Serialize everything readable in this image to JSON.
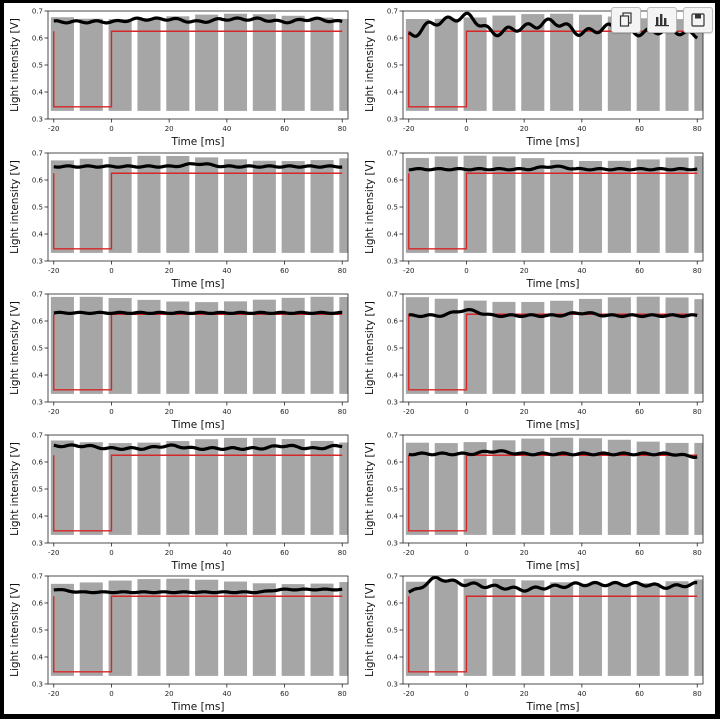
{
  "toolbar": {
    "buttons": [
      {
        "icon": "copy-icon"
      },
      {
        "icon": "bar-chart-icon"
      },
      {
        "icon": "save-icon"
      }
    ]
  },
  "chart_data": [
    {
      "type": "line",
      "xlabel": "Time [ms]",
      "ylabel": "Light intensity [V]",
      "xlim": [
        -22,
        82
      ],
      "ylim": [
        0.3,
        0.7
      ],
      "xticks": [
        -20,
        0,
        20,
        40,
        60,
        80
      ],
      "yticks": [
        0.3,
        0.4,
        0.5,
        0.6,
        0.7
      ],
      "grid": false,
      "gray_band": {
        "y_low": 0.33,
        "y_high": 0.68,
        "gap_period_ms": 10,
        "gap_width_ms": 2
      },
      "series": [
        {
          "color": "#000000",
          "mean": 0.66,
          "amplitude": 0.01,
          "x": [
            -20,
            -10,
            0,
            10,
            20,
            30,
            40,
            50,
            60,
            70,
            80
          ],
          "y": [
            0.66,
            0.66,
            0.66,
            0.67,
            0.67,
            0.66,
            0.67,
            0.67,
            0.66,
            0.67,
            0.66
          ]
        },
        {
          "color": "#d62728",
          "kind": "step",
          "x": [
            -20,
            0,
            0,
            80
          ],
          "low": 0.345,
          "high": 0.625
        }
      ]
    },
    {
      "type": "line",
      "xlabel": "Time [ms]",
      "ylabel": "Light intensity [V]",
      "xlim": [
        -22,
        82
      ],
      "ylim": [
        0.3,
        0.7
      ],
      "xticks": [
        -20,
        0,
        20,
        40,
        60,
        80
      ],
      "yticks": [
        0.3,
        0.4,
        0.5,
        0.6,
        0.7
      ],
      "grid": false,
      "gray_band": {
        "y_low": 0.33,
        "y_high": 0.68,
        "gap_period_ms": 10,
        "gap_width_ms": 2
      },
      "series": [
        {
          "color": "#000000",
          "mean": 0.625,
          "amplitude": 0.03,
          "x": [
            -20,
            -10,
            0,
            10,
            20,
            30,
            40,
            50,
            60,
            70,
            80
          ],
          "y": [
            0.61,
            0.66,
            0.68,
            0.62,
            0.64,
            0.66,
            0.62,
            0.64,
            0.62,
            0.63,
            0.61
          ]
        },
        {
          "color": "#d62728",
          "kind": "step",
          "x": [
            -20,
            0,
            0,
            80
          ],
          "low": 0.345,
          "high": 0.625
        }
      ]
    },
    {
      "type": "line",
      "xlabel": "Time [ms]",
      "ylabel": "Light intensity [V]",
      "xlim": [
        -22,
        82
      ],
      "ylim": [
        0.3,
        0.7
      ],
      "xticks": [
        -20,
        0,
        20,
        40,
        60,
        80
      ],
      "yticks": [
        0.3,
        0.4,
        0.5,
        0.6,
        0.7
      ],
      "grid": false,
      "gray_band": {
        "y_low": 0.33,
        "y_high": 0.68,
        "gap_period_ms": 10,
        "gap_width_ms": 2
      },
      "series": [
        {
          "color": "#000000",
          "mean": 0.65,
          "amplitude": 0.006,
          "x": [
            -20,
            -10,
            0,
            10,
            20,
            30,
            40,
            50,
            60,
            70,
            80
          ],
          "y": [
            0.65,
            0.65,
            0.65,
            0.65,
            0.65,
            0.66,
            0.65,
            0.65,
            0.65,
            0.65,
            0.65
          ]
        },
        {
          "color": "#d62728",
          "kind": "step",
          "x": [
            -20,
            0,
            0,
            80
          ],
          "low": 0.345,
          "high": 0.625
        }
      ]
    },
    {
      "type": "line",
      "xlabel": "Time [ms]",
      "ylabel": "Light intensity [V]",
      "xlim": [
        -22,
        82
      ],
      "ylim": [
        0.3,
        0.7
      ],
      "xticks": [
        -20,
        0,
        20,
        40,
        60,
        80
      ],
      "yticks": [
        0.3,
        0.4,
        0.5,
        0.6,
        0.7
      ],
      "grid": false,
      "gray_band": {
        "y_low": 0.33,
        "y_high": 0.68,
        "gap_period_ms": 10,
        "gap_width_ms": 2
      },
      "series": [
        {
          "color": "#000000",
          "mean": 0.64,
          "amplitude": 0.006,
          "x": [
            -20,
            -10,
            0,
            10,
            20,
            30,
            40,
            50,
            60,
            70,
            80
          ],
          "y": [
            0.64,
            0.64,
            0.64,
            0.64,
            0.64,
            0.65,
            0.64,
            0.64,
            0.64,
            0.64,
            0.64
          ]
        },
        {
          "color": "#d62728",
          "kind": "step",
          "x": [
            -20,
            0,
            0,
            80
          ],
          "low": 0.345,
          "high": 0.625
        }
      ]
    },
    {
      "type": "line",
      "xlabel": "Time [ms]",
      "ylabel": "Light intensity [V]",
      "xlim": [
        -22,
        82
      ],
      "ylim": [
        0.3,
        0.7
      ],
      "xticks": [
        -20,
        0,
        20,
        40,
        60,
        80
      ],
      "yticks": [
        0.3,
        0.4,
        0.5,
        0.6,
        0.7
      ],
      "grid": false,
      "gray_band": {
        "y_low": 0.33,
        "y_high": 0.68,
        "gap_period_ms": 10,
        "gap_width_ms": 2
      },
      "series": [
        {
          "color": "#000000",
          "mean": 0.63,
          "amplitude": 0.005,
          "x": [
            -20,
            -10,
            0,
            10,
            20,
            30,
            40,
            50,
            60,
            70,
            80
          ],
          "y": [
            0.63,
            0.63,
            0.63,
            0.63,
            0.63,
            0.63,
            0.63,
            0.63,
            0.63,
            0.63,
            0.63
          ]
        },
        {
          "color": "#d62728",
          "kind": "step",
          "x": [
            -20,
            0,
            0,
            80
          ],
          "low": 0.345,
          "high": 0.625
        }
      ]
    },
    {
      "type": "line",
      "xlabel": "Time [ms]",
      "ylabel": "Light intensity [V]",
      "xlim": [
        -22,
        82
      ],
      "ylim": [
        0.3,
        0.7
      ],
      "xticks": [
        -20,
        0,
        20,
        40,
        60,
        80
      ],
      "yticks": [
        0.3,
        0.4,
        0.5,
        0.6,
        0.7
      ],
      "grid": false,
      "gray_band": {
        "y_low": 0.33,
        "y_high": 0.68,
        "gap_period_ms": 10,
        "gap_width_ms": 2
      },
      "series": [
        {
          "color": "#000000",
          "mean": 0.62,
          "amplitude": 0.008,
          "x": [
            -20,
            -10,
            0,
            10,
            20,
            30,
            40,
            50,
            60,
            70,
            80
          ],
          "y": [
            0.62,
            0.62,
            0.64,
            0.62,
            0.62,
            0.62,
            0.63,
            0.62,
            0.62,
            0.62,
            0.62
          ]
        },
        {
          "color": "#d62728",
          "kind": "step",
          "x": [
            -20,
            0,
            0,
            80
          ],
          "low": 0.345,
          "high": 0.625
        }
      ]
    },
    {
      "type": "line",
      "xlabel": "Time [ms]",
      "ylabel": "Light intensity [V]",
      "xlim": [
        -22,
        82
      ],
      "ylim": [
        0.3,
        0.7
      ],
      "xticks": [
        -20,
        0,
        20,
        40,
        60,
        80
      ],
      "yticks": [
        0.3,
        0.4,
        0.5,
        0.6,
        0.7
      ],
      "grid": false,
      "gray_band": {
        "y_low": 0.33,
        "y_high": 0.68,
        "gap_period_ms": 10,
        "gap_width_ms": 2
      },
      "series": [
        {
          "color": "#000000",
          "mean": 0.655,
          "amplitude": 0.008,
          "x": [
            -20,
            -10,
            0,
            10,
            20,
            30,
            40,
            50,
            60,
            70,
            80
          ],
          "y": [
            0.66,
            0.66,
            0.65,
            0.65,
            0.66,
            0.65,
            0.65,
            0.65,
            0.66,
            0.65,
            0.66
          ]
        },
        {
          "color": "#d62728",
          "kind": "step",
          "x": [
            -20,
            0,
            0,
            80
          ],
          "low": 0.345,
          "high": 0.625
        }
      ]
    },
    {
      "type": "line",
      "xlabel": "Time [ms]",
      "ylabel": "Light intensity [V]",
      "xlim": [
        -22,
        82
      ],
      "ylim": [
        0.3,
        0.7
      ],
      "xticks": [
        -20,
        0,
        20,
        40,
        60,
        80
      ],
      "yticks": [
        0.3,
        0.4,
        0.5,
        0.6,
        0.7
      ],
      "grid": false,
      "gray_band": {
        "y_low": 0.33,
        "y_high": 0.68,
        "gap_period_ms": 10,
        "gap_width_ms": 2
      },
      "series": [
        {
          "color": "#000000",
          "mean": 0.63,
          "amplitude": 0.008,
          "x": [
            -20,
            -10,
            0,
            10,
            20,
            30,
            40,
            50,
            60,
            70,
            80
          ],
          "y": [
            0.63,
            0.63,
            0.63,
            0.64,
            0.63,
            0.63,
            0.63,
            0.63,
            0.63,
            0.63,
            0.62
          ]
        },
        {
          "color": "#d62728",
          "kind": "step",
          "x": [
            -20,
            0,
            0,
            80
          ],
          "low": 0.345,
          "high": 0.625
        }
      ]
    },
    {
      "type": "line",
      "xlabel": "Time [ms]",
      "ylabel": "Light intensity [V]",
      "xlim": [
        -22,
        82
      ],
      "ylim": [
        0.3,
        0.7
      ],
      "xticks": [
        -20,
        0,
        20,
        40,
        60,
        80
      ],
      "yticks": [
        0.3,
        0.4,
        0.5,
        0.6,
        0.7
      ],
      "grid": false,
      "gray_band": {
        "y_low": 0.33,
        "y_high": 0.68,
        "gap_period_ms": 10,
        "gap_width_ms": 2
      },
      "series": [
        {
          "color": "#000000",
          "mean": 0.645,
          "amplitude": 0.004,
          "x": [
            -20,
            -10,
            0,
            10,
            20,
            30,
            40,
            50,
            60,
            70,
            80
          ],
          "y": [
            0.65,
            0.64,
            0.64,
            0.64,
            0.64,
            0.64,
            0.64,
            0.64,
            0.65,
            0.65,
            0.65
          ]
        },
        {
          "color": "#d62728",
          "kind": "step",
          "x": [
            -20,
            0,
            0,
            80
          ],
          "low": 0.345,
          "high": 0.625
        }
      ]
    },
    {
      "type": "line",
      "xlabel": "Time [ms]",
      "ylabel": "Light intensity [V]",
      "xlim": [
        -22,
        82
      ],
      "ylim": [
        0.3,
        0.7
      ],
      "xticks": [
        -20,
        0,
        20,
        40,
        60,
        80
      ],
      "yticks": [
        0.3,
        0.4,
        0.5,
        0.6,
        0.7
      ],
      "grid": false,
      "gray_band": {
        "y_low": 0.33,
        "y_high": 0.68,
        "gap_period_ms": 10,
        "gap_width_ms": 2
      },
      "series": [
        {
          "color": "#000000",
          "mean": 0.67,
          "amplitude": 0.015,
          "x": [
            -20,
            -10,
            0,
            10,
            20,
            30,
            40,
            50,
            60,
            70,
            80
          ],
          "y": [
            0.64,
            0.69,
            0.67,
            0.66,
            0.65,
            0.66,
            0.67,
            0.67,
            0.67,
            0.66,
            0.67
          ]
        },
        {
          "color": "#d62728",
          "kind": "step",
          "x": [
            -20,
            0,
            0,
            80
          ],
          "low": 0.345,
          "high": 0.625
        }
      ]
    }
  ]
}
